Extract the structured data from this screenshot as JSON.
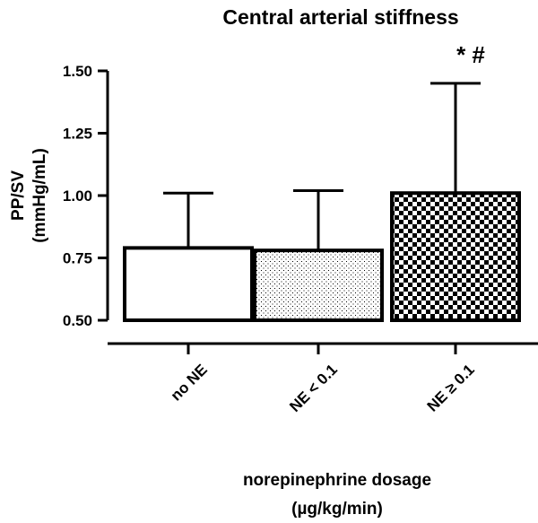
{
  "chart_data": {
    "type": "bar",
    "title": "Central arterial stiffness",
    "ylabel": [
      "PP/SV",
      "(mmHg/mL)"
    ],
    "xlabel": [
      "norepinephrine dosage",
      "(µg/kg/min)"
    ],
    "ylim": [
      0.5,
      1.5
    ],
    "yticks": [
      "0.50",
      "0.75",
      "1.00",
      "1.25",
      "1.50"
    ],
    "categories": [
      "no NE",
      "NE < 0.1",
      "NE ≥ 0.1"
    ],
    "values": [
      0.79,
      0.78,
      1.01
    ],
    "error_upper": [
      1.01,
      1.02,
      1.45
    ],
    "fills": [
      "none",
      "dots",
      "checker"
    ],
    "annotations": [
      "",
      "",
      "* #"
    ]
  }
}
